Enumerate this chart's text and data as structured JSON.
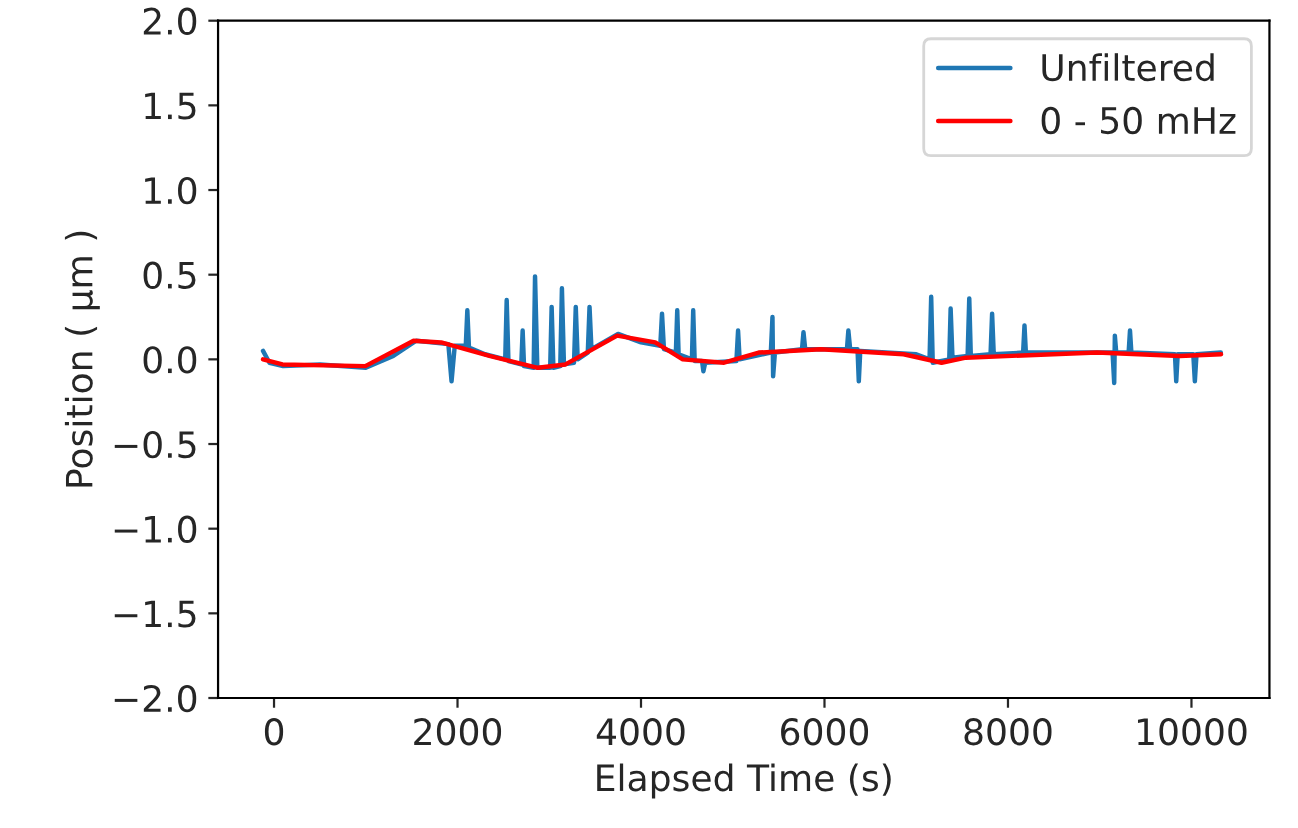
{
  "chart_data": {
    "type": "line",
    "xlabel": "Elapsed Time (s)",
    "ylabel": "Position ( µm )",
    "xlim": [
      -610,
      10850
    ],
    "xticks": [
      0,
      2000,
      4000,
      6000,
      8000,
      10000
    ],
    "ylim": [
      -2.0,
      2.0
    ],
    "yticks": [
      {
        "value": -2.0,
        "label": "−2.0"
      },
      {
        "value": -1.5,
        "label": "−1.5"
      },
      {
        "value": -1.0,
        "label": "−1.0"
      },
      {
        "value": -0.5,
        "label": "−0.5"
      },
      {
        "value": 0.0,
        "label": "0.0"
      },
      {
        "value": 0.5,
        "label": "0.5"
      },
      {
        "value": 1.0,
        "label": "1.0"
      },
      {
        "value": 1.5,
        "label": "1.5"
      },
      {
        "value": 2.0,
        "label": "2.0"
      }
    ],
    "grid": false,
    "legend": "top right",
    "marker": "none",
    "line_style": "solid",
    "series": [
      {
        "name": "Unfiltered",
        "color": "#1f77b4",
        "x": [
          -120,
          -50,
          100,
          500,
          1000,
          1300,
          1550,
          1900,
          1935,
          1970,
          2090,
          2107,
          2125,
          2300,
          2520,
          2536,
          2555,
          2695,
          2710,
          2725,
          2830,
          2845,
          2870,
          3010,
          3026,
          3045,
          3120,
          3138,
          3160,
          3270,
          3289,
          3310,
          3420,
          3439,
          3460,
          3750,
          4000,
          4210,
          4229,
          4250,
          4380,
          4395,
          4410,
          4555,
          4569,
          4585,
          4665,
          4680,
          4700,
          5040,
          5058,
          5075,
          5415,
          5433,
          5440,
          5460,
          5755,
          5771,
          5790,
          6245,
          6260,
          6280,
          6360,
          6374,
          6390,
          7000,
          7145,
          7163,
          7180,
          7360,
          7375,
          7395,
          7560,
          7578,
          7595,
          7810,
          7827,
          7845,
          8165,
          8180,
          8195,
          9140,
          9158,
          9165,
          9180,
          9315,
          9330,
          9345,
          9820,
          9834,
          9850,
          10020,
          10037,
          10055,
          10320
        ],
        "values": [
          0.05,
          -0.02,
          -0.04,
          -0.03,
          -0.05,
          0.02,
          0.11,
          0.09,
          -0.13,
          0.08,
          0.08,
          0.29,
          0.07,
          0.03,
          0.0,
          0.35,
          -0.01,
          -0.03,
          0.17,
          -0.04,
          -0.05,
          0.49,
          -0.05,
          -0.05,
          0.31,
          -0.05,
          -0.04,
          0.42,
          -0.03,
          -0.02,
          0.31,
          0.0,
          0.04,
          0.31,
          0.06,
          0.15,
          0.1,
          0.08,
          0.27,
          0.06,
          0.04,
          0.29,
          0.03,
          0.0,
          0.29,
          -0.01,
          -0.01,
          -0.07,
          -0.02,
          -0.01,
          0.17,
          0.0,
          0.04,
          0.25,
          -0.1,
          0.04,
          0.06,
          0.16,
          0.06,
          0.06,
          0.17,
          0.06,
          0.06,
          -0.13,
          0.05,
          0.03,
          0.0,
          0.37,
          -0.02,
          0.0,
          0.3,
          0.01,
          0.02,
          0.36,
          0.02,
          0.03,
          0.27,
          0.03,
          0.04,
          0.2,
          0.04,
          0.04,
          -0.14,
          0.14,
          0.04,
          0.04,
          0.17,
          0.04,
          0.03,
          -0.13,
          0.03,
          0.03,
          -0.13,
          0.03,
          0.04
        ]
      },
      {
        "name": "0 - 50 mHz",
        "color": "#ff0000",
        "x": [
          -120,
          92,
          995,
          1521,
          1822,
          2348,
          2876,
          3177,
          3740,
          4155,
          4455,
          4905,
          5283,
          5960,
          6862,
          7276,
          7541,
          8970,
          9873,
          10323
        ],
        "values": [
          0.0,
          -0.03,
          -0.04,
          0.11,
          0.1,
          0.02,
          -0.05,
          -0.03,
          0.14,
          0.1,
          0.0,
          -0.02,
          0.04,
          0.06,
          0.03,
          -0.02,
          0.01,
          0.04,
          0.02,
          0.03
        ]
      }
    ]
  }
}
